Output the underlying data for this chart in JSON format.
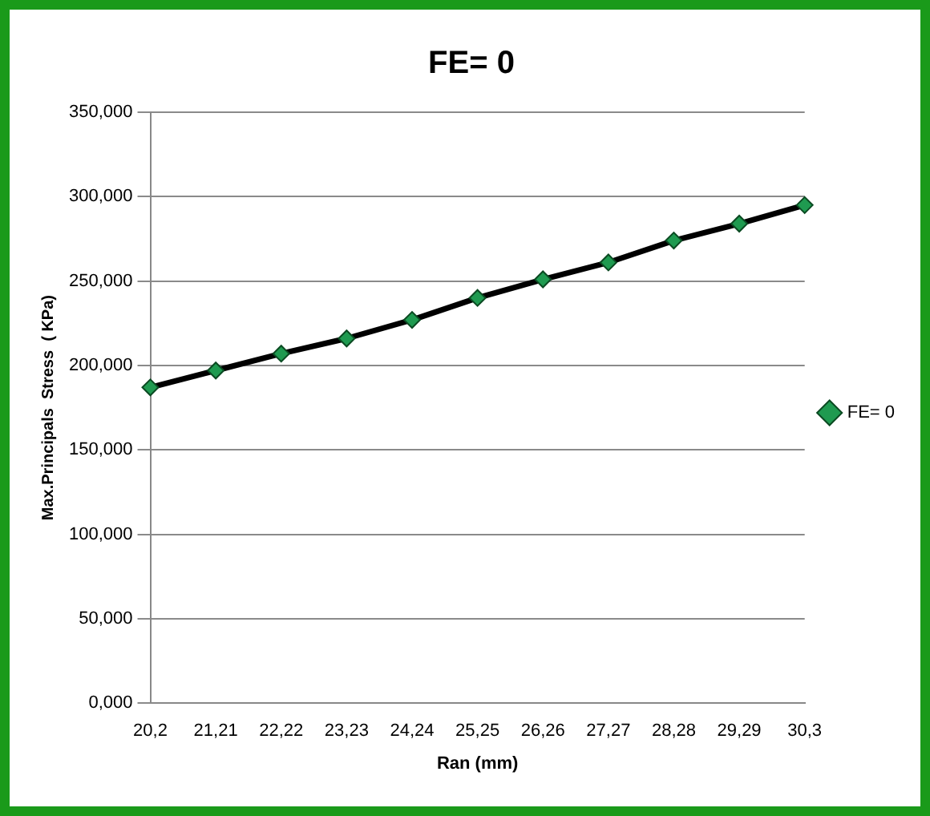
{
  "chart_data": {
    "type": "line",
    "title": "FE= 0",
    "xlabel": "Ran (mm)",
    "ylabel": "Max.Principals  Stress  ( KPa)",
    "categories": [
      "20,2",
      "21,21",
      "22,22",
      "23,23",
      "24,24",
      "25,25",
      "26,26",
      "27,27",
      "28,28",
      "29,29",
      "30,3"
    ],
    "series": [
      {
        "name": "FE= 0",
        "color": "#000000",
        "values": [
          187,
          197,
          207,
          216,
          227,
          240,
          251,
          261,
          274,
          284,
          295
        ]
      }
    ],
    "ylim": [
      0,
      350
    ],
    "yticks": [
      {
        "value": 0,
        "label": "0,000"
      },
      {
        "value": 50,
        "label": "50,000"
      },
      {
        "value": 100,
        "label": "100,000"
      },
      {
        "value": 150,
        "label": "150,000"
      },
      {
        "value": 200,
        "label": "200,000"
      },
      {
        "value": 250,
        "label": "250,000"
      },
      {
        "value": 300,
        "label": "300,000"
      },
      {
        "value": 350,
        "label": "350,000"
      }
    ],
    "grid": "y",
    "legend": "right",
    "marker": "diamond",
    "line_style": "solid"
  }
}
